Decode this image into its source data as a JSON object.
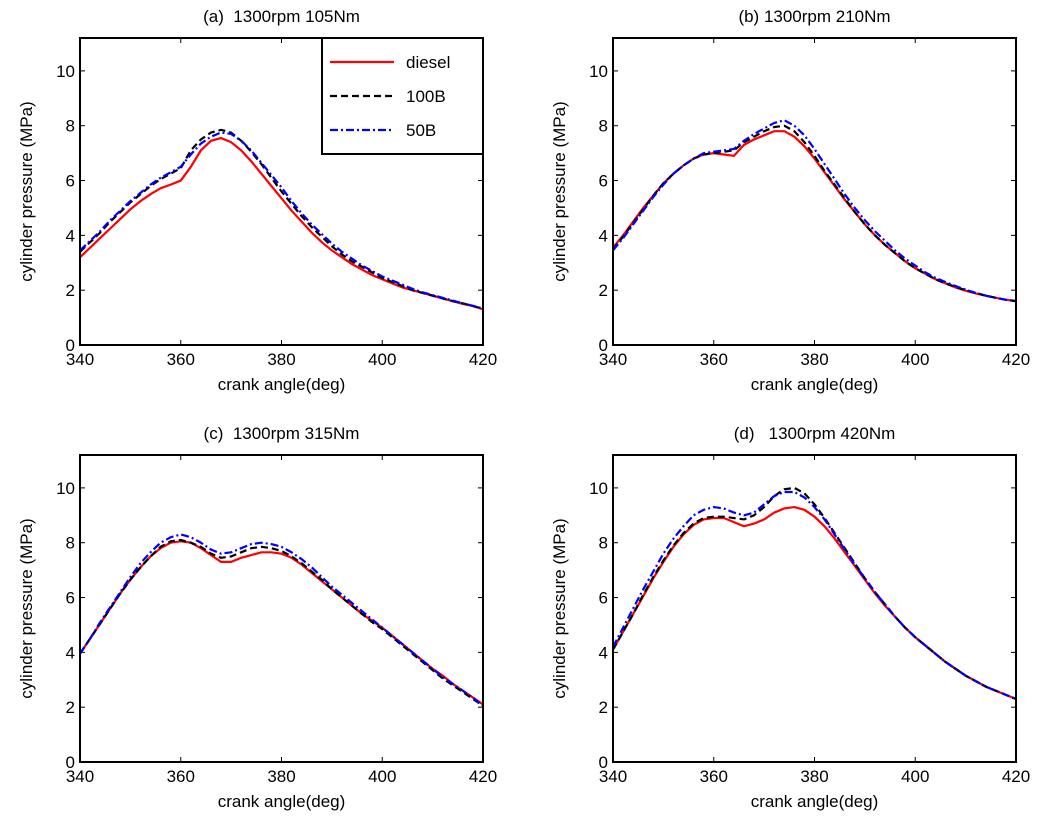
{
  "chart_data": [
    {
      "type": "line",
      "title": "(a)  1300rpm 105Nm",
      "x_label": "crank angle(deg)",
      "y_label": "cylinder pressure (MPa)",
      "xlim": [
        340,
        420
      ],
      "ylim": [
        0,
        11.2
      ],
      "xticks": [
        340,
        360,
        380,
        400,
        420
      ],
      "yticks": [
        0,
        2,
        4,
        6,
        8,
        10
      ],
      "grid": false,
      "legend": "upper right",
      "x": [
        340,
        342,
        344,
        346,
        348,
        350,
        352,
        354,
        356,
        358,
        360,
        362,
        364,
        366,
        368,
        370,
        372,
        374,
        376,
        378,
        380,
        382,
        384,
        386,
        388,
        390,
        392,
        394,
        396,
        398,
        400,
        402,
        404,
        406,
        408,
        410,
        412,
        414,
        416,
        418,
        420
      ],
      "series": [
        {
          "name": "diesel",
          "color": "#ff0000",
          "style": "solid",
          "values": [
            3.2,
            3.55,
            3.9,
            4.25,
            4.6,
            4.95,
            5.25,
            5.5,
            5.72,
            5.85,
            6.0,
            6.5,
            7.1,
            7.45,
            7.55,
            7.4,
            7.1,
            6.7,
            6.25,
            5.8,
            5.35,
            4.9,
            4.5,
            4.1,
            3.75,
            3.45,
            3.2,
            2.95,
            2.75,
            2.55,
            2.4,
            2.25,
            2.1,
            2.0,
            1.9,
            1.8,
            1.7,
            1.6,
            1.5,
            1.42,
            1.3
          ]
        },
        {
          "name": "100B",
          "color": "#000000",
          "style": "dashed",
          "values": [
            3.4,
            3.75,
            4.1,
            4.5,
            4.85,
            5.2,
            5.5,
            5.8,
            6.05,
            6.25,
            6.45,
            7.1,
            7.5,
            7.75,
            7.85,
            7.75,
            7.45,
            7.05,
            6.6,
            6.1,
            5.6,
            5.15,
            4.7,
            4.3,
            3.95,
            3.6,
            3.3,
            3.05,
            2.85,
            2.65,
            2.45,
            2.3,
            2.15,
            2.0,
            1.9,
            1.8,
            1.7,
            1.6,
            1.52,
            1.42,
            1.33
          ]
        },
        {
          "name": "50B",
          "color": "#0000ff",
          "style": "dashdot",
          "values": [
            3.45,
            3.8,
            4.15,
            4.55,
            4.9,
            5.25,
            5.55,
            5.85,
            6.1,
            6.3,
            6.5,
            6.95,
            7.35,
            7.6,
            7.75,
            7.7,
            7.45,
            7.1,
            6.65,
            6.2,
            5.75,
            5.25,
            4.8,
            4.4,
            4.05,
            3.7,
            3.4,
            3.15,
            2.9,
            2.7,
            2.5,
            2.35,
            2.2,
            2.05,
            1.92,
            1.82,
            1.72,
            1.62,
            1.52,
            1.43,
            1.33
          ]
        }
      ]
    },
    {
      "type": "line",
      "title": "(b) 1300rpm 210Nm",
      "x_label": "crank angle(deg)",
      "y_label": "cylinder pressure (MPa)",
      "xlim": [
        340,
        420
      ],
      "ylim": [
        0,
        11.2
      ],
      "xticks": [
        340,
        360,
        380,
        400,
        420
      ],
      "yticks": [
        0,
        2,
        4,
        6,
        8,
        10
      ],
      "grid": false,
      "x": [
        340,
        342,
        344,
        346,
        348,
        350,
        352,
        354,
        356,
        358,
        360,
        362,
        364,
        366,
        368,
        370,
        372,
        374,
        376,
        378,
        380,
        382,
        384,
        386,
        388,
        390,
        392,
        394,
        396,
        398,
        400,
        402,
        404,
        406,
        408,
        410,
        412,
        414,
        416,
        418,
        420
      ],
      "series": [
        {
          "name": "diesel",
          "color": "#ff0000",
          "style": "solid",
          "values": [
            3.55,
            4.0,
            4.5,
            5.0,
            5.45,
            5.9,
            6.25,
            6.55,
            6.8,
            6.95,
            7.0,
            6.95,
            6.9,
            7.3,
            7.5,
            7.65,
            7.8,
            7.8,
            7.6,
            7.25,
            6.8,
            6.3,
            5.8,
            5.3,
            4.85,
            4.4,
            4.0,
            3.65,
            3.35,
            3.05,
            2.8,
            2.6,
            2.4,
            2.25,
            2.1,
            1.98,
            1.88,
            1.8,
            1.72,
            1.65,
            1.6
          ]
        },
        {
          "name": "100B",
          "color": "#000000",
          "style": "dashed",
          "values": [
            3.5,
            3.95,
            4.45,
            4.95,
            5.45,
            5.9,
            6.25,
            6.55,
            6.8,
            6.95,
            7.0,
            7.05,
            7.1,
            7.4,
            7.6,
            7.8,
            7.95,
            8.0,
            7.8,
            7.4,
            6.9,
            6.35,
            5.85,
            5.35,
            4.85,
            4.4,
            4.0,
            3.65,
            3.35,
            3.05,
            2.8,
            2.6,
            2.4,
            2.25,
            2.12,
            2.0,
            1.9,
            1.8,
            1.72,
            1.65,
            1.6
          ]
        },
        {
          "name": "50B",
          "color": "#0000ff",
          "style": "dashdot",
          "values": [
            3.45,
            3.9,
            4.4,
            4.9,
            5.4,
            5.85,
            6.25,
            6.55,
            6.8,
            7.0,
            7.05,
            7.1,
            7.15,
            7.45,
            7.7,
            7.9,
            8.1,
            8.2,
            8.0,
            7.65,
            7.15,
            6.6,
            6.05,
            5.5,
            5.0,
            4.55,
            4.15,
            3.8,
            3.45,
            3.15,
            2.9,
            2.65,
            2.45,
            2.3,
            2.15,
            2.02,
            1.9,
            1.8,
            1.72,
            1.65,
            1.6
          ]
        }
      ]
    },
    {
      "type": "line",
      "title": "(c)  1300rpm 315Nm",
      "x_label": "crank angle(deg)",
      "y_label": "cylinder pressure (MPa)",
      "xlim": [
        340,
        420
      ],
      "ylim": [
        0,
        11.2
      ],
      "xticks": [
        340,
        360,
        380,
        400,
        420
      ],
      "yticks": [
        0,
        2,
        4,
        6,
        8,
        10
      ],
      "grid": false,
      "x": [
        340,
        342,
        344,
        346,
        348,
        350,
        352,
        354,
        356,
        358,
        360,
        362,
        364,
        366,
        368,
        370,
        372,
        374,
        376,
        378,
        380,
        382,
        384,
        386,
        388,
        390,
        392,
        394,
        396,
        398,
        400,
        402,
        404,
        406,
        408,
        410,
        412,
        414,
        416,
        418,
        420
      ],
      "series": [
        {
          "name": "diesel",
          "color": "#ff0000",
          "style": "solid",
          "values": [
            3.95,
            4.5,
            5.05,
            5.6,
            6.15,
            6.65,
            7.1,
            7.5,
            7.8,
            8.0,
            8.05,
            8.0,
            7.8,
            7.55,
            7.3,
            7.3,
            7.45,
            7.55,
            7.65,
            7.65,
            7.6,
            7.45,
            7.2,
            6.9,
            6.6,
            6.3,
            6.0,
            5.7,
            5.4,
            5.15,
            4.9,
            4.6,
            4.3,
            4.0,
            3.7,
            3.4,
            3.15,
            2.85,
            2.6,
            2.35,
            2.1
          ]
        },
        {
          "name": "100B",
          "color": "#000000",
          "style": "dashed",
          "values": [
            3.95,
            4.5,
            5.05,
            5.6,
            6.15,
            6.65,
            7.1,
            7.5,
            7.85,
            8.05,
            8.1,
            8.0,
            7.85,
            7.6,
            7.45,
            7.5,
            7.65,
            7.8,
            7.85,
            7.8,
            7.7,
            7.5,
            7.25,
            6.95,
            6.65,
            6.3,
            6.0,
            5.7,
            5.4,
            5.1,
            4.85,
            4.55,
            4.25,
            3.95,
            3.65,
            3.35,
            3.05,
            2.8,
            2.55,
            2.3,
            2.05
          ]
        },
        {
          "name": "50B",
          "color": "#0000ff",
          "style": "dashdot",
          "values": [
            3.95,
            4.5,
            5.1,
            5.65,
            6.2,
            6.75,
            7.25,
            7.65,
            8.0,
            8.2,
            8.3,
            8.2,
            8.0,
            7.75,
            7.6,
            7.65,
            7.8,
            7.95,
            8.0,
            7.95,
            7.85,
            7.65,
            7.4,
            7.1,
            6.75,
            6.4,
            6.1,
            5.8,
            5.5,
            5.2,
            4.9,
            4.6,
            4.3,
            4.0,
            3.7,
            3.4,
            3.1,
            2.85,
            2.6,
            2.35,
            2.05
          ]
        }
      ]
    },
    {
      "type": "line",
      "title": "(d)   1300rpm 420Nm",
      "x_label": "crank angle(deg)",
      "y_label": "cylinder pressure (MPa)",
      "xlim": [
        340,
        420
      ],
      "ylim": [
        0,
        11.2
      ],
      "xticks": [
        340,
        360,
        380,
        400,
        420
      ],
      "yticks": [
        0,
        2,
        4,
        6,
        8,
        10
      ],
      "grid": false,
      "x": [
        340,
        342,
        344,
        346,
        348,
        350,
        352,
        354,
        356,
        358,
        360,
        362,
        364,
        366,
        368,
        370,
        372,
        374,
        376,
        378,
        380,
        382,
        384,
        386,
        388,
        390,
        392,
        394,
        396,
        398,
        400,
        402,
        404,
        406,
        408,
        410,
        412,
        414,
        416,
        418,
        420
      ],
      "series": [
        {
          "name": "diesel",
          "color": "#ff0000",
          "style": "solid",
          "values": [
            4.1,
            4.75,
            5.4,
            6.05,
            6.7,
            7.3,
            7.85,
            8.3,
            8.65,
            8.85,
            8.9,
            8.9,
            8.75,
            8.6,
            8.7,
            8.85,
            9.1,
            9.25,
            9.3,
            9.2,
            8.95,
            8.6,
            8.15,
            7.65,
            7.15,
            6.65,
            6.15,
            5.7,
            5.3,
            4.9,
            4.55,
            4.25,
            3.95,
            3.65,
            3.4,
            3.15,
            2.95,
            2.75,
            2.6,
            2.45,
            2.3
          ]
        },
        {
          "name": "100B",
          "color": "#000000",
          "style": "dashed",
          "values": [
            4.1,
            4.75,
            5.4,
            6.1,
            6.75,
            7.35,
            7.9,
            8.35,
            8.7,
            8.9,
            8.95,
            8.95,
            8.9,
            8.85,
            9.0,
            9.3,
            9.7,
            9.95,
            10.0,
            9.8,
            9.4,
            8.9,
            8.35,
            7.8,
            7.25,
            6.7,
            6.2,
            5.75,
            5.3,
            4.9,
            4.55,
            4.25,
            3.95,
            3.65,
            3.4,
            3.15,
            2.95,
            2.75,
            2.6,
            2.45,
            2.3
          ]
        },
        {
          "name": "50B",
          "color": "#0000ff",
          "style": "dashdot",
          "values": [
            4.2,
            4.9,
            5.6,
            6.3,
            6.95,
            7.6,
            8.15,
            8.6,
            9.0,
            9.2,
            9.3,
            9.25,
            9.1,
            9.0,
            9.1,
            9.4,
            9.7,
            9.85,
            9.85,
            9.65,
            9.3,
            8.85,
            8.3,
            7.75,
            7.2,
            6.7,
            6.2,
            5.75,
            5.3,
            4.9,
            4.55,
            4.25,
            3.95,
            3.65,
            3.4,
            3.15,
            2.95,
            2.75,
            2.6,
            2.45,
            2.3
          ]
        }
      ]
    }
  ]
}
